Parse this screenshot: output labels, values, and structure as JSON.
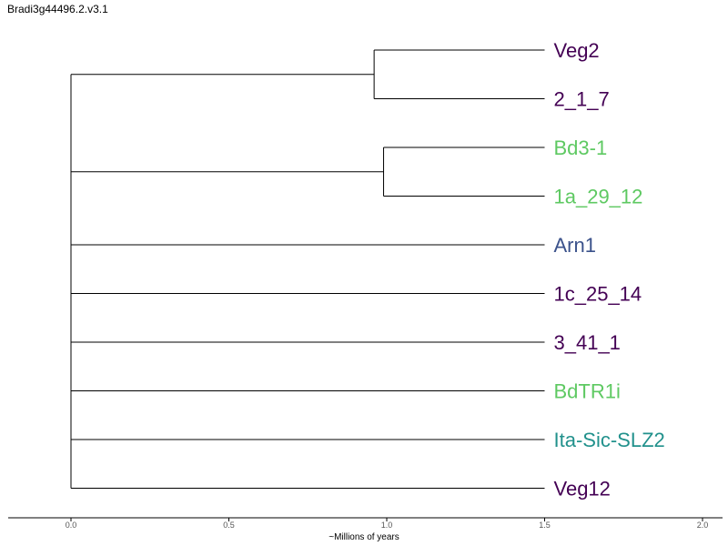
{
  "title": "Bradi3g44496.2.v3.1",
  "axis": {
    "label": "~Millions of years",
    "ticks": [
      "0.0",
      "0.5",
      "1.0",
      "1.5",
      "2.0"
    ],
    "tick_values": [
      0,
      0.5,
      1.0,
      1.5,
      2.0
    ],
    "range": [
      -0.2,
      2.06
    ]
  },
  "colors": {
    "purple": "#440154",
    "green": "#5ec962",
    "blue": "#3b528b",
    "teal": "#21918c"
  },
  "chart_data": {
    "type": "dendrogram",
    "leaves": [
      {
        "name": "Veg2",
        "color": "#440154"
      },
      {
        "name": "2_1_7",
        "color": "#440154"
      },
      {
        "name": "Bd3-1",
        "color": "#5ec962"
      },
      {
        "name": "1a_29_12",
        "color": "#5ec962"
      },
      {
        "name": "Arn1",
        "color": "#3b528b"
      },
      {
        "name": "1c_25_14",
        "color": "#440154"
      },
      {
        "name": "3_41_1",
        "color": "#440154"
      },
      {
        "name": "BdTR1i",
        "color": "#5ec962"
      },
      {
        "name": "Ita-Sic-SLZ2",
        "color": "#21918c"
      },
      {
        "name": "Veg12",
        "color": "#440154"
      }
    ],
    "clades": [
      {
        "members": [
          "Veg2",
          "2_1_7"
        ],
        "age": 0.96
      },
      {
        "members": [
          "Bd3-1",
          "1a_29_12"
        ],
        "age": 0.99
      }
    ],
    "root_age": 0.0,
    "tip_age": 1.5
  }
}
